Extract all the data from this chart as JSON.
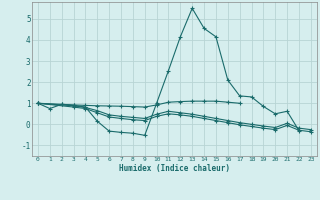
{
  "xlabel": "Humidex (Indice chaleur)",
  "xlim": [
    -0.5,
    23.5
  ],
  "ylim": [
    -1.5,
    5.8
  ],
  "yticks": [
    -1,
    0,
    1,
    2,
    3,
    4,
    5
  ],
  "xticks": [
    0,
    1,
    2,
    3,
    4,
    5,
    6,
    7,
    8,
    9,
    10,
    11,
    12,
    13,
    14,
    15,
    16,
    17,
    18,
    19,
    20,
    21,
    22,
    23
  ],
  "bg_color": "#d6eeee",
  "grid_color": "#b8d4d4",
  "line_color": "#1a6b6b",
  "lines": [
    {
      "x": [
        0,
        1,
        2,
        3,
        4,
        5,
        6,
        7,
        8,
        9,
        10,
        11,
        12,
        13,
        14,
        15,
        16,
        17,
        18,
        19,
        20,
        21,
        22
      ],
      "y": [
        1.0,
        0.75,
        0.95,
        0.9,
        0.82,
        0.15,
        -0.32,
        -0.38,
        -0.42,
        -0.52,
        1.0,
        2.55,
        4.15,
        5.5,
        4.55,
        4.15,
        2.1,
        1.35,
        1.3,
        0.85,
        0.5,
        0.62,
        -0.3
      ]
    },
    {
      "x": [
        0,
        2,
        3,
        4,
        5,
        6,
        7,
        8,
        9,
        10,
        11,
        12,
        13,
        14,
        15,
        16,
        17
      ],
      "y": [
        1.0,
        0.95,
        0.92,
        0.9,
        0.88,
        0.87,
        0.86,
        0.84,
        0.82,
        0.92,
        1.05,
        1.08,
        1.1,
        1.1,
        1.1,
        1.05,
        1.0
      ]
    },
    {
      "x": [
        0,
        3,
        4,
        5,
        6,
        7,
        8,
        9,
        10,
        11,
        12,
        13,
        14,
        15,
        16,
        17,
        18,
        19,
        20,
        21,
        22,
        23
      ],
      "y": [
        1.0,
        0.82,
        0.75,
        0.55,
        0.35,
        0.28,
        0.22,
        0.18,
        0.38,
        0.5,
        0.45,
        0.38,
        0.28,
        0.18,
        0.08,
        -0.02,
        -0.1,
        -0.18,
        -0.25,
        -0.05,
        -0.28,
        -0.35
      ]
    },
    {
      "x": [
        0,
        3,
        4,
        5,
        6,
        7,
        8,
        9,
        10,
        11,
        12,
        13,
        14,
        15,
        16,
        17,
        18,
        19,
        20,
        21,
        22,
        23
      ],
      "y": [
        1.0,
        0.88,
        0.8,
        0.65,
        0.45,
        0.38,
        0.33,
        0.28,
        0.48,
        0.62,
        0.55,
        0.48,
        0.38,
        0.28,
        0.18,
        0.08,
        0.0,
        -0.08,
        -0.15,
        0.05,
        -0.18,
        -0.25
      ]
    }
  ]
}
